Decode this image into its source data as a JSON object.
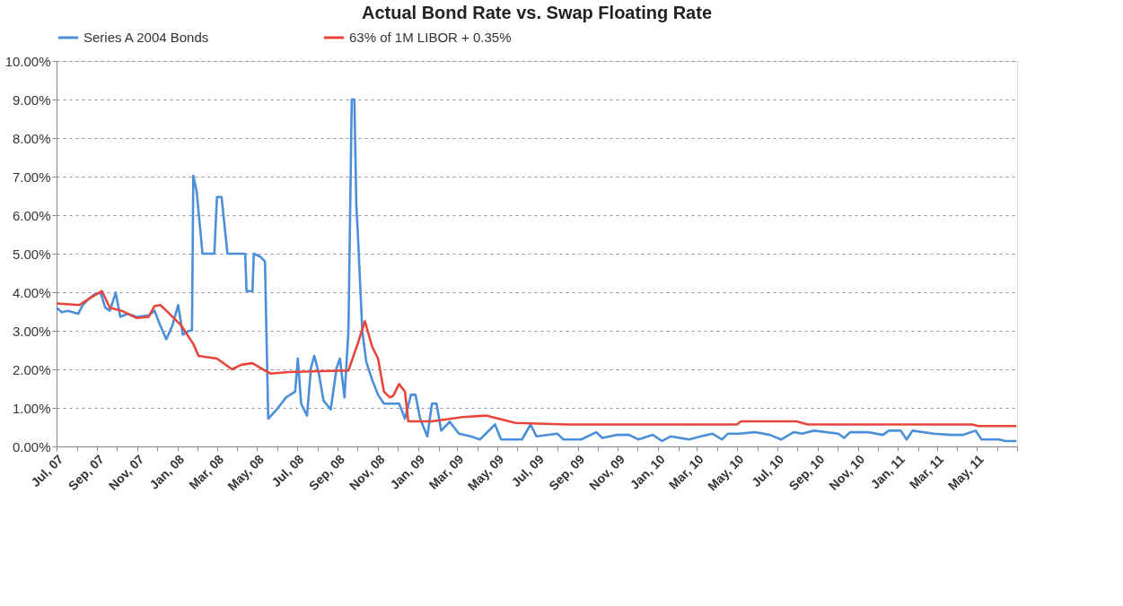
{
  "chart_data": {
    "type": "line",
    "title": "Actual Bond Rate vs. Swap Floating Rate",
    "legend": "top",
    "grid": "y",
    "marker": "none",
    "line_style": "solid",
    "xlim": [
      "2007-07-01",
      "2011-07-01"
    ],
    "xticks": [
      {
        "value": "2007-07-01",
        "label": "Jul, 07"
      },
      {
        "value": "2007-08-01",
        "label": null
      },
      {
        "value": "2007-09-01",
        "label": "Sep, 07"
      },
      {
        "value": "2007-10-01",
        "label": null
      },
      {
        "value": "2007-11-01",
        "label": "Nov, 07"
      },
      {
        "value": "2007-12-01",
        "label": null
      },
      {
        "value": "2008-01-01",
        "label": "Jan, 08"
      },
      {
        "value": "2008-02-01",
        "label": null
      },
      {
        "value": "2008-03-01",
        "label": "Mar, 08"
      },
      {
        "value": "2008-04-01",
        "label": null
      },
      {
        "value": "2008-05-01",
        "label": "May, 08"
      },
      {
        "value": "2008-06-01",
        "label": null
      },
      {
        "value": "2008-07-01",
        "label": "Jul, 08"
      },
      {
        "value": "2008-08-01",
        "label": null
      },
      {
        "value": "2008-09-01",
        "label": "Sep, 08"
      },
      {
        "value": "2008-10-01",
        "label": null
      },
      {
        "value": "2008-11-01",
        "label": "Nov, 08"
      },
      {
        "value": "2008-12-01",
        "label": null
      },
      {
        "value": "2009-01-01",
        "label": "Jan, 09"
      },
      {
        "value": "2009-02-01",
        "label": null
      },
      {
        "value": "2009-03-01",
        "label": "Mar, 09"
      },
      {
        "value": "2009-04-01",
        "label": null
      },
      {
        "value": "2009-05-01",
        "label": "May, 09"
      },
      {
        "value": "2009-06-01",
        "label": null
      },
      {
        "value": "2009-07-01",
        "label": "Jul, 09"
      },
      {
        "value": "2009-08-01",
        "label": null
      },
      {
        "value": "2009-09-01",
        "label": "Sep, 09"
      },
      {
        "value": "2009-10-01",
        "label": null
      },
      {
        "value": "2009-11-01",
        "label": "Nov, 09"
      },
      {
        "value": "2009-12-01",
        "label": null
      },
      {
        "value": "2010-01-01",
        "label": "Jan, 10"
      },
      {
        "value": "2010-02-01",
        "label": null
      },
      {
        "value": "2010-03-01",
        "label": "Mar, 10"
      },
      {
        "value": "2010-04-01",
        "label": null
      },
      {
        "value": "2010-05-01",
        "label": "May, 10"
      },
      {
        "value": "2010-06-01",
        "label": null
      },
      {
        "value": "2010-07-01",
        "label": "Jul, 10"
      },
      {
        "value": "2010-08-01",
        "label": null
      },
      {
        "value": "2010-09-01",
        "label": "Sep, 10"
      },
      {
        "value": "2010-10-01",
        "label": null
      },
      {
        "value": "2010-11-01",
        "label": "Nov, 10"
      },
      {
        "value": "2010-12-01",
        "label": null
      },
      {
        "value": "2011-01-01",
        "label": "Jan, 11"
      },
      {
        "value": "2011-02-01",
        "label": null
      },
      {
        "value": "2011-03-01",
        "label": "Mar, 11"
      },
      {
        "value": "2011-04-01",
        "label": null
      },
      {
        "value": "2011-05-01",
        "label": "May, 11"
      },
      {
        "value": "2011-06-01",
        "label": null
      },
      {
        "value": "2011-07-01",
        "label": null
      }
    ],
    "ylim": [
      0,
      10
    ],
    "yticks": [
      {
        "value": 0,
        "label": "0.00%"
      },
      {
        "value": 1,
        "label": "1.00%"
      },
      {
        "value": 2,
        "label": "2.00%"
      },
      {
        "value": 3,
        "label": "3.00%"
      },
      {
        "value": 4,
        "label": "4.00%"
      },
      {
        "value": 5,
        "label": "5.00%"
      },
      {
        "value": 6,
        "label": "6.00%"
      },
      {
        "value": 7,
        "label": "7.00%"
      },
      {
        "value": 8,
        "label": "8.00%"
      },
      {
        "value": 9,
        "label": "9.00%"
      },
      {
        "value": 10,
        "label": "10.00%"
      }
    ],
    "series": [
      {
        "name": "Series A 2004 Bonds",
        "color": "#4a8fd8",
        "x": [
          "2007-07-01",
          "2007-07-09",
          "2007-07-18",
          "2007-08-03",
          "2007-08-10",
          "2007-08-19",
          "2007-08-28",
          "2007-09-06",
          "2007-09-13",
          "2007-09-20",
          "2007-09-29",
          "2007-10-06",
          "2007-10-17",
          "2007-10-31",
          "2007-11-18",
          "2007-11-27",
          "2007-12-06",
          "2007-12-15",
          "2007-12-24",
          "2008-01-02",
          "2008-01-09",
          "2008-01-16",
          "2008-01-23",
          "2008-01-25",
          "2008-01-30",
          "2008-02-08",
          "2008-02-26",
          "2008-03-01",
          "2008-03-08",
          "2008-03-17",
          "2008-04-13",
          "2008-04-15",
          "2008-04-24",
          "2008-04-26",
          "2008-05-06",
          "2008-05-13",
          "2008-05-18",
          "2008-05-31",
          "2008-06-14",
          "2008-06-28",
          "2008-07-02",
          "2008-07-07",
          "2008-07-16",
          "2008-07-22",
          "2008-07-27",
          "2008-08-03",
          "2008-08-10",
          "2008-08-21",
          "2008-08-30",
          "2008-09-04",
          "2008-09-11",
          "2008-09-17",
          "2008-09-22",
          "2008-09-26",
          "2008-09-29",
          "2008-10-01",
          "2008-10-08",
          "2008-10-14",
          "2008-10-23",
          "2008-11-01",
          "2008-11-10",
          "2008-11-19",
          "2008-12-03",
          "2008-12-12",
          "2008-12-21",
          "2008-12-28",
          "2009-01-04",
          "2009-01-15",
          "2009-01-22",
          "2009-01-29",
          "2009-02-05",
          "2009-02-18",
          "2009-03-04",
          "2009-03-22",
          "2009-04-05",
          "2009-04-28",
          "2009-05-07",
          "2009-06-08",
          "2009-06-21",
          "2009-06-30",
          "2009-08-01",
          "2009-08-10",
          "2009-09-06",
          "2009-09-29",
          "2009-10-08",
          "2009-10-31",
          "2009-11-18",
          "2009-12-02",
          "2009-12-24",
          "2010-01-07",
          "2010-01-20",
          "2010-02-17",
          "2010-03-07",
          "2010-03-25",
          "2010-04-08",
          "2010-04-17",
          "2010-05-05",
          "2010-05-28",
          "2010-06-20",
          "2010-07-07",
          "2010-07-26",
          "2010-08-08",
          "2010-08-26",
          "2010-10-02",
          "2010-10-11",
          "2010-10-20",
          "2010-11-16",
          "2010-12-09",
          "2010-12-18",
          "2011-01-05",
          "2011-01-14",
          "2011-01-23",
          "2011-02-24",
          "2011-03-23",
          "2011-04-10",
          "2011-04-29",
          "2011-05-08",
          "2011-06-04",
          "2011-06-13",
          "2011-06-30"
        ],
        "values": [
          3.6,
          3.48,
          3.52,
          3.44,
          3.67,
          3.83,
          3.95,
          3.99,
          3.6,
          3.52,
          3.99,
          3.36,
          3.44,
          3.36,
          3.4,
          3.52,
          3.13,
          2.78,
          3.13,
          3.67,
          2.9,
          2.98,
          3.01,
          7.02,
          6.63,
          5.0,
          5.0,
          6.47,
          6.47,
          5.0,
          5.0,
          4.03,
          4.03,
          5.0,
          4.92,
          4.8,
          0.72,
          0.96,
          1.27,
          1.42,
          2.28,
          1.11,
          0.8,
          2.04,
          2.35,
          1.89,
          1.19,
          0.96,
          2.04,
          2.28,
          1.27,
          3.01,
          9.0,
          9.0,
          6.24,
          5.62,
          3.01,
          2.2,
          1.73,
          1.34,
          1.11,
          1.11,
          1.11,
          0.72,
          1.34,
          1.34,
          0.72,
          0.26,
          1.11,
          1.11,
          0.41,
          0.64,
          0.33,
          0.26,
          0.18,
          0.57,
          0.18,
          0.18,
          0.57,
          0.26,
          0.33,
          0.18,
          0.18,
          0.37,
          0.22,
          0.3,
          0.3,
          0.18,
          0.3,
          0.14,
          0.26,
          0.18,
          0.26,
          0.33,
          0.18,
          0.33,
          0.33,
          0.37,
          0.3,
          0.18,
          0.37,
          0.33,
          0.41,
          0.33,
          0.22,
          0.37,
          0.37,
          0.3,
          0.41,
          0.41,
          0.18,
          0.41,
          0.33,
          0.3,
          0.3,
          0.41,
          0.18,
          0.18,
          0.14,
          0.14
        ]
      },
      {
        "name": "63% of 1M LIBOR + 0.35%",
        "color": "#e8453c",
        "x": [
          "2007-07-01",
          "2007-08-05",
          "2007-08-19",
          "2007-09-08",
          "2007-09-20",
          "2007-10-08",
          "2007-10-31",
          "2007-11-18",
          "2007-11-27",
          "2007-12-06",
          "2007-12-20",
          "2008-01-07",
          "2008-01-25",
          "2008-02-02",
          "2008-03-01",
          "2008-03-24",
          "2008-04-07",
          "2008-04-24",
          "2008-05-13",
          "2008-05-22",
          "2008-06-18",
          "2008-09-17",
          "2008-10-01",
          "2008-10-12",
          "2008-10-23",
          "2008-11-01",
          "2008-11-10",
          "2008-11-19",
          "2008-11-24",
          "2008-12-03",
          "2008-12-12",
          "2008-12-17",
          "2009-01-22",
          "2009-03-09",
          "2009-04-14",
          "2009-05-29",
          "2009-08-15",
          "2010-05-01",
          "2010-05-07",
          "2010-07-30",
          "2010-08-17",
          "2011-04-24",
          "2011-05-03",
          "2011-06-30"
        ],
        "values": [
          3.71,
          3.67,
          3.83,
          4.03,
          3.6,
          3.52,
          3.33,
          3.36,
          3.64,
          3.67,
          3.44,
          3.13,
          2.66,
          2.35,
          2.28,
          2.0,
          2.12,
          2.16,
          1.97,
          1.89,
          1.93,
          1.97,
          2.66,
          3.25,
          2.59,
          2.28,
          1.42,
          1.27,
          1.31,
          1.62,
          1.42,
          0.65,
          0.65,
          0.76,
          0.8,
          0.61,
          0.57,
          0.57,
          0.65,
          0.65,
          0.57,
          0.57,
          0.53,
          0.53
        ]
      }
    ]
  }
}
